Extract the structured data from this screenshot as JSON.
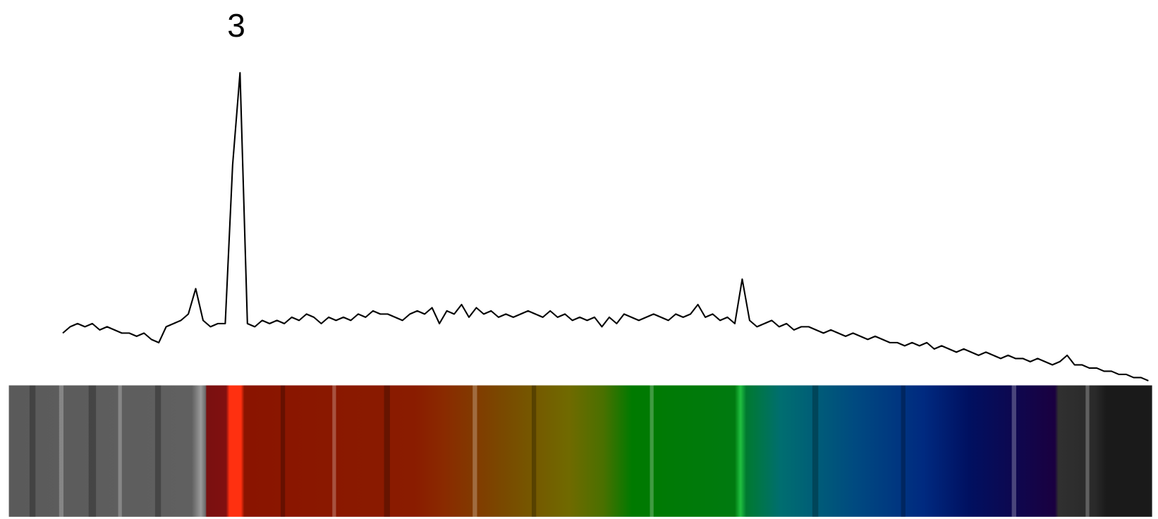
{
  "chart_data": {
    "type": "line",
    "annotations": [
      "3"
    ],
    "color": "#000000",
    "ylim": [
      0,
      100
    ],
    "values": [
      16,
      18,
      19,
      18,
      19,
      17,
      18,
      17,
      16,
      16,
      15,
      16,
      14,
      13,
      18,
      19,
      20,
      22,
      30,
      20,
      18,
      19,
      19,
      69,
      98,
      19,
      18,
      20,
      19,
      20,
      19,
      21,
      20,
      22,
      21,
      19,
      21,
      20,
      21,
      20,
      22,
      21,
      23,
      22,
      22,
      21,
      20,
      22,
      23,
      22,
      24,
      19,
      23,
      22,
      25,
      21,
      24,
      22,
      23,
      21,
      22,
      21,
      22,
      23,
      22,
      21,
      23,
      21,
      22,
      20,
      21,
      20,
      21,
      18,
      21,
      19,
      22,
      21,
      20,
      21,
      22,
      21,
      20,
      22,
      21,
      22,
      25,
      21,
      22,
      20,
      21,
      19,
      33,
      20,
      18,
      19,
      20,
      18,
      19,
      17,
      18,
      18,
      17,
      16,
      17,
      16,
      15,
      16,
      15,
      14,
      15,
      14,
      13,
      13,
      12,
      13,
      12,
      13,
      11,
      12,
      11,
      10,
      11,
      10,
      9,
      10,
      9,
      8,
      9,
      8,
      8,
      7,
      8,
      7,
      6,
      7,
      9,
      6,
      6,
      5,
      5,
      4,
      4,
      3,
      3,
      2,
      2,
      1
    ]
  }
}
